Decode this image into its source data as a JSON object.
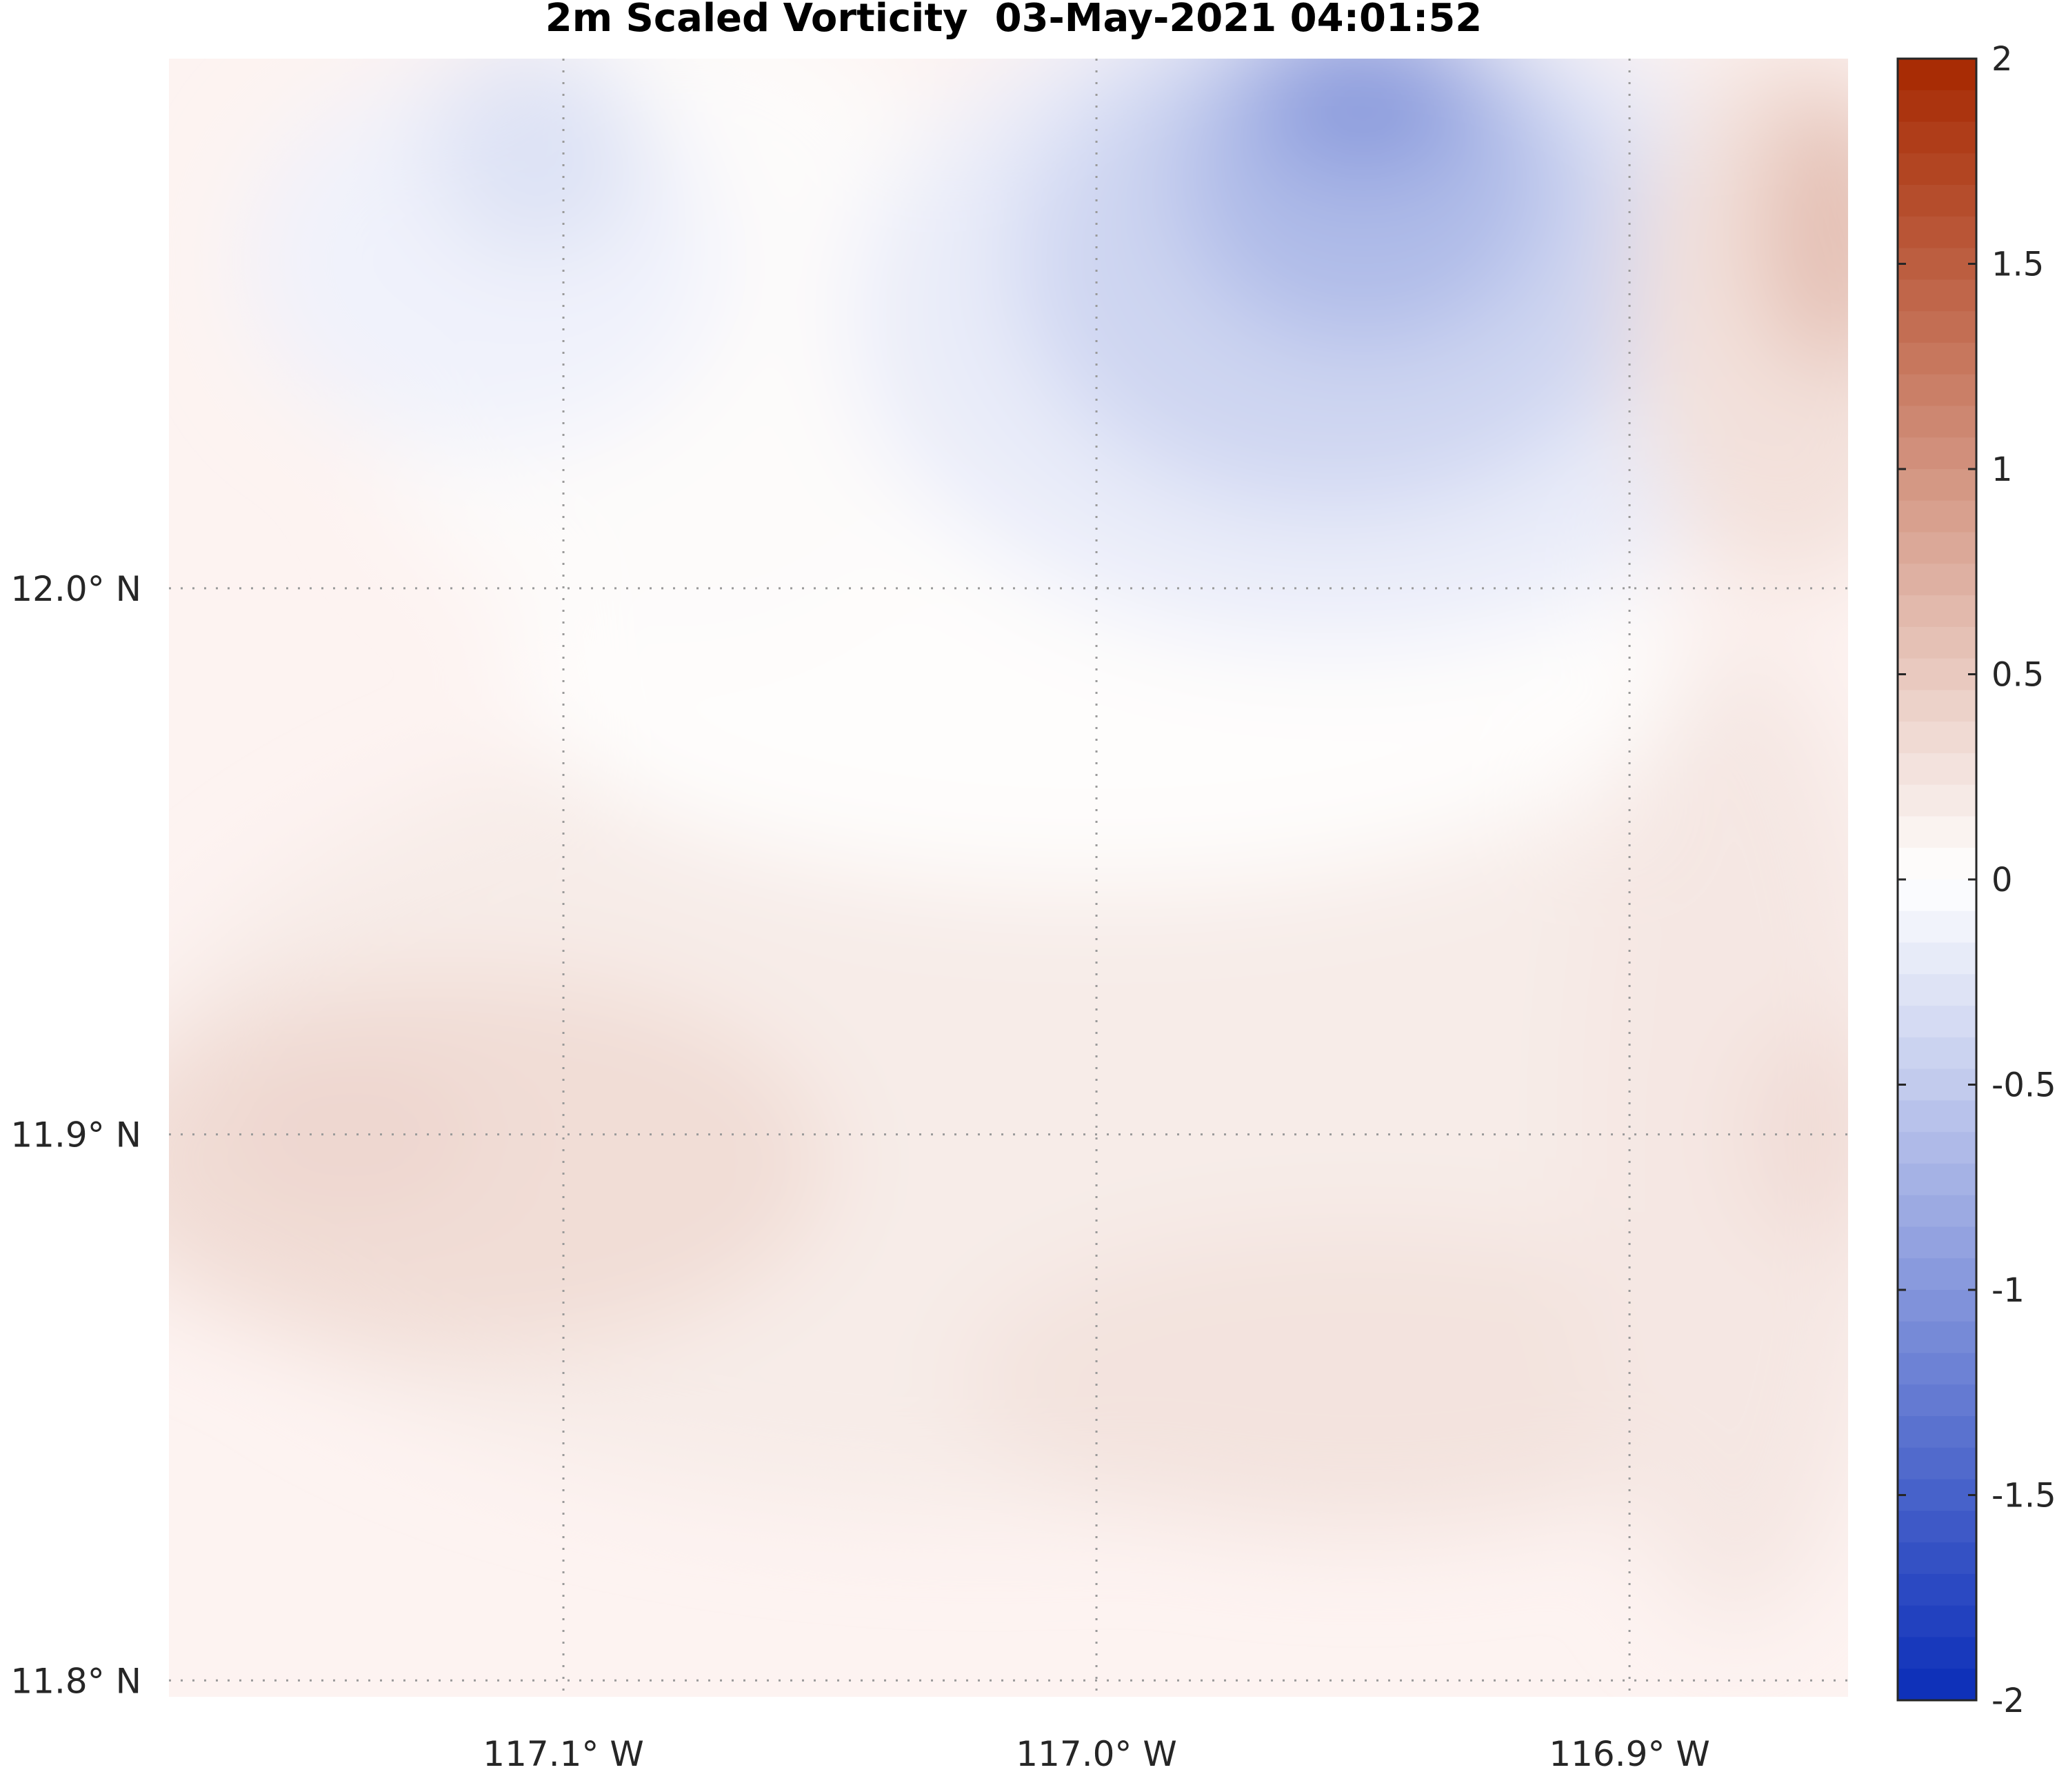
{
  "chart_data": {
    "type": "heatmap",
    "title": "2m Scaled Vorticity  03-May-2021 04:01:52",
    "x_ticks": [
      {
        "value": -117.1,
        "label": "117.1° W"
      },
      {
        "value": -117.0,
        "label": "117.0° W"
      },
      {
        "value": -116.9,
        "label": "116.9° W"
      }
    ],
    "y_ticks": [
      {
        "value": 12.0,
        "label": "12.0° N"
      },
      {
        "value": 11.9,
        "label": "11.9° N"
      },
      {
        "value": 11.8,
        "label": "11.8° N"
      }
    ],
    "xlim": [
      -117.174,
      -116.859
    ],
    "ylim": [
      11.797,
      12.097
    ],
    "grid": true,
    "colorbar": {
      "position": "right",
      "range": [
        -2,
        2
      ],
      "levels": 52,
      "ticks": [
        "2",
        "1.5",
        "1",
        "0.5",
        "0",
        "-0.5",
        "-1",
        "-1.5",
        "-2"
      ],
      "tick_values": [
        2,
        1.5,
        1,
        0.5,
        0,
        -0.5,
        -1,
        -1.5,
        -2
      ],
      "colors": {
        "negative": "#0a2db8",
        "zero": "#ffffff",
        "positive": "#a62800"
      }
    },
    "field_features": [
      {
        "kind": "negative-vorticity core",
        "lon": -116.95,
        "lat": 12.09,
        "value": -0.95
      },
      {
        "kind": "negative-vorticity lobe",
        "lon": -117.11,
        "lat": 12.07,
        "value": -0.28
      },
      {
        "kind": "positive-vorticity maximum",
        "lon": -116.86,
        "lat": 12.07,
        "value": 0.6
      },
      {
        "kind": "positive band",
        "lon": -117.13,
        "lat": 11.9,
        "value": 0.32
      },
      {
        "kind": "positive band",
        "lon": -116.94,
        "lat": 11.85,
        "value": 0.25
      }
    ]
  }
}
